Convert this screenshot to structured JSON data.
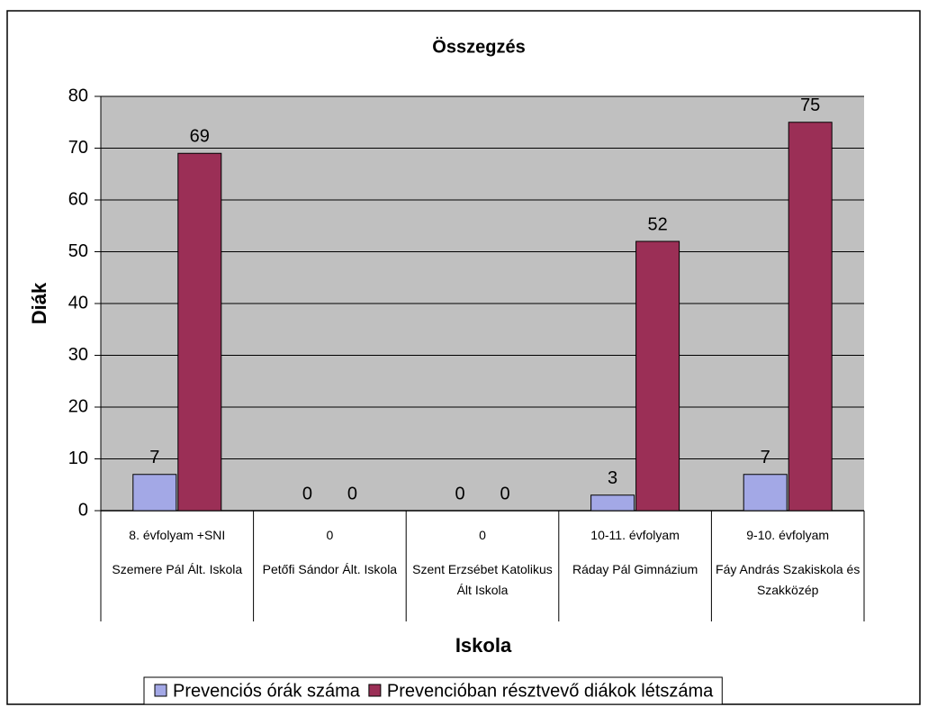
{
  "chart_data": {
    "type": "bar",
    "title": "Összegzés",
    "y_label": "Diák",
    "x_label": "Iskola",
    "categories": [
      "Szemere Pál Ált. Iskola",
      "Petőfi Sándor Ált. Iskola",
      "Szent Erzsébet Katolikus Ált Iskola",
      "Ráday Pál Gimnázium",
      "Fáy András Szakiskola és Szakközép"
    ],
    "subcategories": [
      "8. évfolyam +SNI",
      "0",
      "0",
      "10-11. évfolyam",
      "9-10. évfolyam"
    ],
    "series": [
      {
        "name": "Prevenciós órák száma",
        "color": "#a3a8e6",
        "values": [
          7,
          0,
          0,
          3,
          7
        ]
      },
      {
        "name": "Prevencióban résztvevő diákok létszáma",
        "color": "#9b2f56",
        "values": [
          69,
          0,
          0,
          52,
          75
        ]
      }
    ],
    "ylim": [
      0,
      80
    ],
    "yticks": [
      0,
      10,
      20,
      30,
      40,
      50,
      60,
      70,
      80
    ],
    "grid": true,
    "legend": "bottom"
  }
}
